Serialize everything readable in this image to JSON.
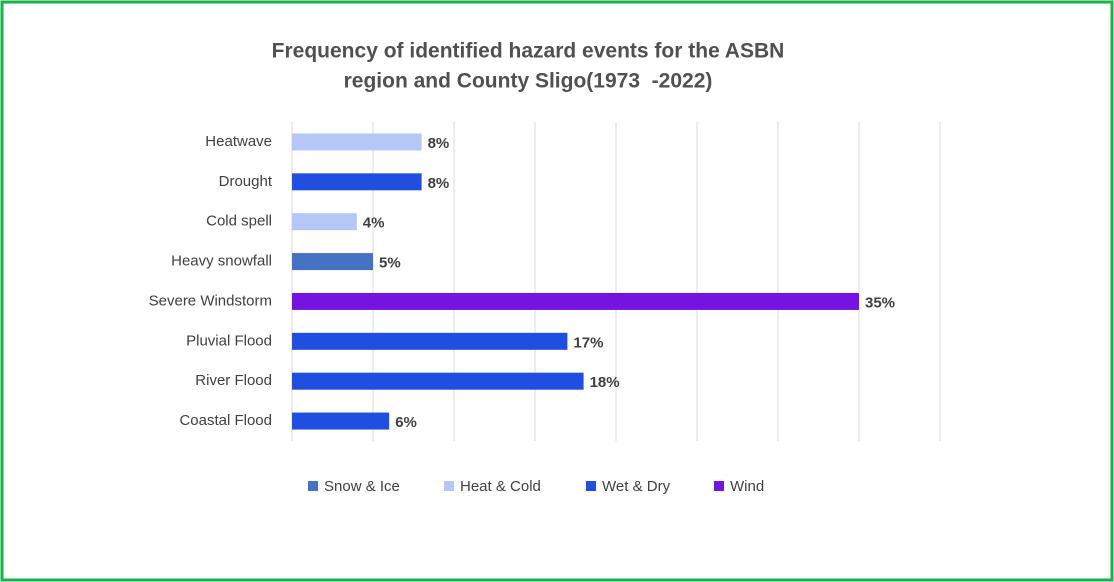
{
  "chart_data": {
    "type": "bar",
    "title": [
      "Frequency of identified hazard events for the ASBN",
      "region and County Sligo(1973  -2022)"
    ],
    "categories": [
      "Heatwave",
      "Drought",
      "Cold spell",
      "Heavy snowfall",
      "Severe Windstorm",
      "Pluvial Flood",
      "River Flood",
      "Coastal Flood"
    ],
    "series": [
      {
        "name": "Snow & Ice",
        "color": "#4472c4",
        "values": [
          null,
          null,
          null,
          5,
          null,
          null,
          null,
          null
        ],
        "value_labels": [
          null,
          null,
          null,
          "5%",
          null,
          null,
          null,
          null
        ]
      },
      {
        "name": "Heat & Cold",
        "color": "#b4c7f7",
        "values": [
          8,
          null,
          4,
          null,
          null,
          null,
          null,
          null
        ],
        "value_labels": [
          "8%",
          null,
          "4%",
          null,
          null,
          null,
          null,
          null
        ]
      },
      {
        "name": "Wet & Dry",
        "color": "#1f4ee0",
        "values": [
          null,
          8,
          null,
          null,
          null,
          17,
          18,
          6
        ],
        "value_labels": [
          null,
          "8%",
          null,
          null,
          null,
          "17%",
          "18%",
          "6%"
        ]
      },
      {
        "name": "Wind",
        "color": "#7514e0",
        "values": [
          null,
          null,
          null,
          null,
          35,
          null,
          null,
          null
        ],
        "value_labels": [
          null,
          null,
          null,
          null,
          "35%",
          null,
          null,
          null
        ]
      }
    ],
    "xlim": [
      0,
      40
    ],
    "xticks": [
      0,
      5,
      10,
      15,
      20,
      25,
      30,
      35,
      40
    ],
    "grid": true,
    "legend": "bottom"
  }
}
